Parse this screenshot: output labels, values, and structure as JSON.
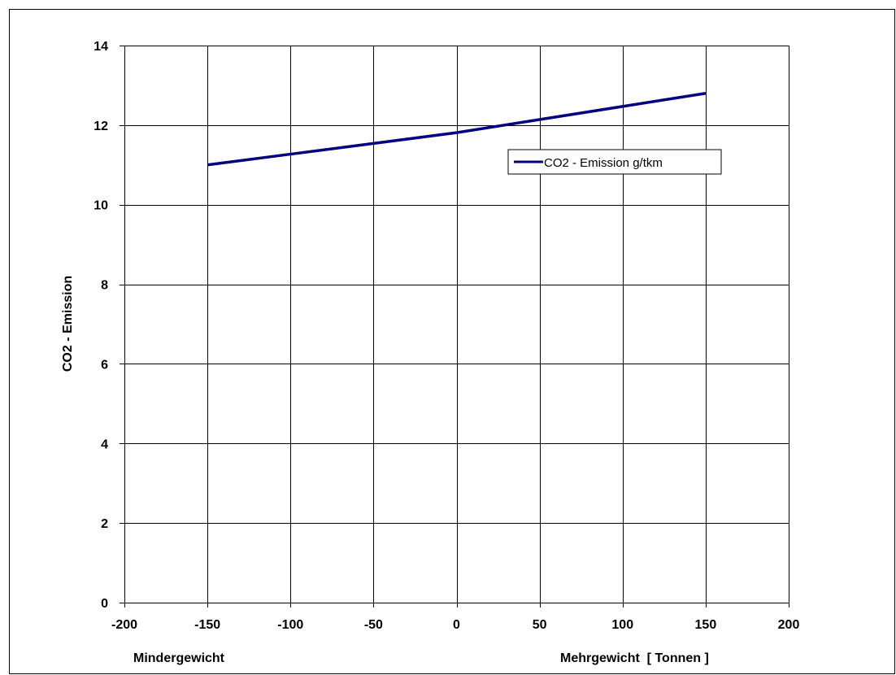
{
  "chart_data": {
    "type": "line",
    "title": "",
    "xlabel_left": "Mindergewicht",
    "xlabel_right": "Mehrgewicht  [ Tonnen ]",
    "ylabel": "CO2 - Emission",
    "xlim": [
      -200,
      200
    ],
    "ylim": [
      0,
      14
    ],
    "x_ticks": [
      -200,
      -150,
      -100,
      -50,
      0,
      50,
      100,
      150,
      200
    ],
    "y_ticks": [
      0,
      2,
      4,
      6,
      8,
      10,
      12,
      14
    ],
    "grid": true,
    "legend_position": "upper-right, inside plot",
    "series": [
      {
        "name": "CO2 - Emission g/tkm",
        "color": "#000080",
        "x": [
          -150,
          -100,
          -50,
          0,
          50,
          100,
          150
        ],
        "y": [
          11.0,
          11.27,
          11.54,
          11.81,
          12.14,
          12.47,
          12.8
        ]
      }
    ]
  }
}
